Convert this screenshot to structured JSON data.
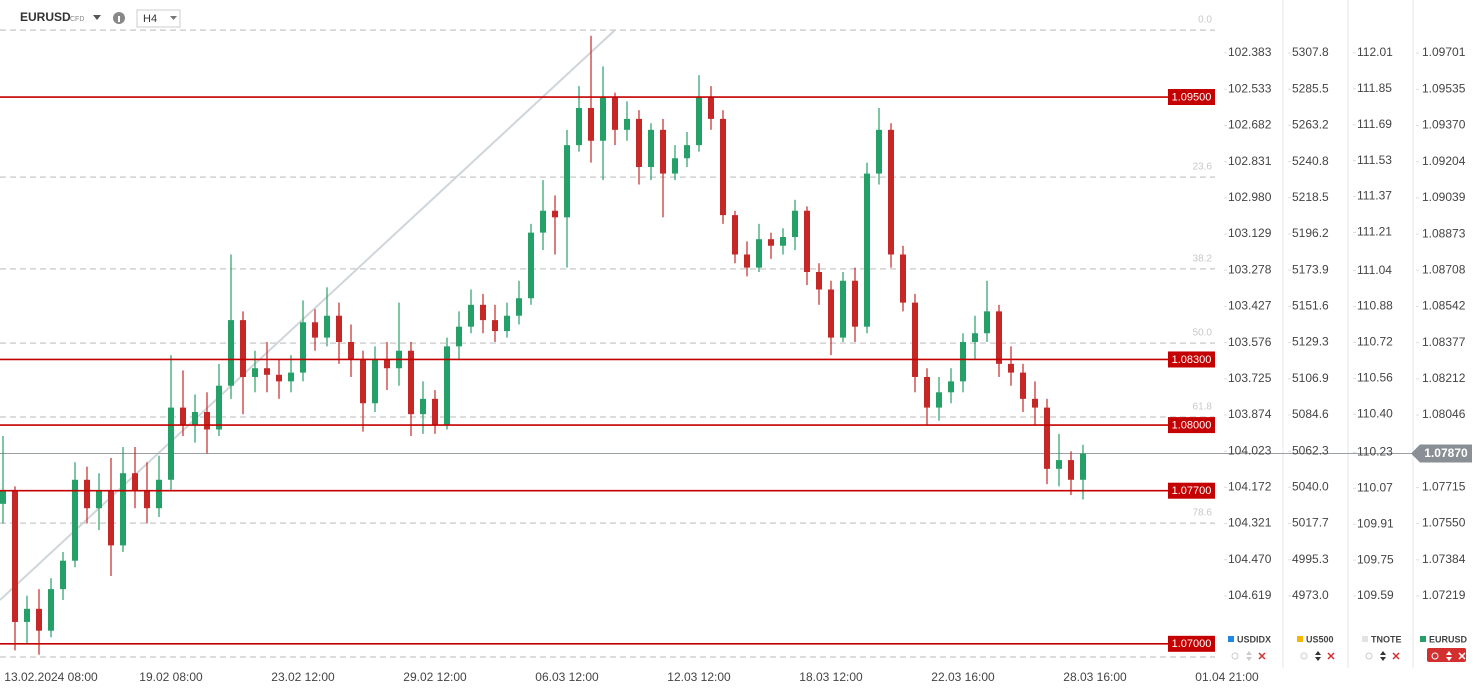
{
  "header": {
    "symbol": "EURUSD",
    "kind": "CFD",
    "interval": "H4"
  },
  "chart_data": {
    "type": "candlestick",
    "name": "EURUSD",
    "color": "#26a069",
    "up_color": "#26a069",
    "down_color": "#c62828",
    "categories": [
      null,
      null,
      null,
      null,
      "13.02.2024 08:00",
      null,
      null,
      null,
      null,
      null,
      null,
      null,
      null,
      null,
      "19.02 08:00",
      null,
      null,
      null,
      null,
      null,
      null,
      null,
      null,
      null,
      null,
      "23.02 12:00",
      null,
      null,
      null,
      null,
      null,
      null,
      null,
      null,
      null,
      null,
      "29.02 12:00",
      null,
      null,
      null,
      null,
      null,
      null,
      null,
      null,
      null,
      null,
      "06.03 12:00",
      null,
      null,
      null,
      null,
      null,
      null,
      null,
      null,
      null,
      null,
      "12.03 12:00",
      null,
      null,
      null,
      null,
      null,
      null,
      null,
      null,
      null,
      null,
      "18.03 12:00",
      null,
      null,
      null,
      null,
      null,
      null,
      null,
      null,
      null,
      null,
      "22.03 16:00",
      null,
      null,
      null,
      null,
      null,
      null,
      null,
      null,
      null,
      null,
      "28.03 16:00",
      null,
      null,
      null,
      null,
      null,
      null,
      null,
      null,
      null,
      null,
      "01.04 21:00"
    ],
    "open": [
      1.0764,
      1.077,
      1.071,
      1.0716,
      1.0706,
      1.0725,
      1.0738,
      1.0775,
      1.0762,
      1.077,
      1.0745,
      1.0778,
      1.077,
      1.0762,
      1.0775,
      1.0808,
      1.08,
      1.0806,
      1.0798,
      1.0818,
      1.0848,
      1.0822,
      1.0826,
      1.0823,
      1.082,
      1.0824,
      1.0847,
      1.084,
      1.085,
      1.0838,
      1.083,
      1.081,
      1.083,
      1.0826,
      1.0834,
      1.0805,
      1.0812,
      1.08,
      1.0836,
      1.0845,
      1.0855,
      1.0848,
      1.0843,
      1.085,
      1.0858,
      1.0888,
      1.0898,
      1.0895,
      1.0928,
      1.0945,
      1.093,
      1.095,
      1.0935,
      1.094,
      1.0918,
      1.0935,
      1.0915,
      1.0922,
      1.0928,
      1.095,
      1.094,
      1.0896,
      1.0878,
      1.0872,
      1.0885,
      1.0882,
      1.0886,
      1.0898,
      1.087,
      1.0862,
      1.084,
      1.0866,
      1.0845,
      1.0915,
      1.0935,
      1.0878,
      1.0856,
      1.0822,
      1.0808,
      1.0815,
      1.082,
      1.0838,
      1.0842,
      1.0852,
      1.0828,
      1.0824,
      1.0812,
      1.0808,
      1.078,
      1.0784,
      1.0775,
      null,
      null,
      null,
      null,
      null,
      null,
      null,
      null,
      null,
      null,
      null,
      null
    ],
    "close": [
      1.077,
      1.071,
      1.0716,
      1.0706,
      1.0725,
      1.0738,
      1.0775,
      1.0762,
      1.077,
      1.0745,
      1.0778,
      1.077,
      1.0762,
      1.0775,
      1.0808,
      1.08,
      1.0806,
      1.0798,
      1.0818,
      1.0848,
      1.0822,
      1.0826,
      1.0823,
      1.082,
      1.0824,
      1.0847,
      1.084,
      1.085,
      1.0838,
      1.083,
      1.081,
      1.083,
      1.0826,
      1.0834,
      1.0805,
      1.0812,
      1.08,
      1.0836,
      1.0845,
      1.0855,
      1.0848,
      1.0843,
      1.085,
      1.0858,
      1.0888,
      1.0898,
      1.0895,
      1.0928,
      1.0945,
      1.093,
      1.095,
      1.0935,
      1.094,
      1.0918,
      1.0935,
      1.0915,
      1.0922,
      1.0928,
      1.095,
      1.094,
      1.0896,
      1.0878,
      1.0872,
      1.0885,
      1.0882,
      1.0886,
      1.0898,
      1.087,
      1.0862,
      1.084,
      1.0866,
      1.0845,
      1.0915,
      1.0935,
      1.0878,
      1.0856,
      1.0822,
      1.0808,
      1.0815,
      1.082,
      1.0838,
      1.0842,
      1.0852,
      1.0828,
      1.0824,
      1.0812,
      1.0808,
      1.078,
      1.0784,
      1.0775,
      1.0787,
      null,
      null,
      null,
      null,
      null,
      null,
      null,
      null,
      null,
      null,
      null,
      null
    ],
    "high": [
      1.0795,
      1.0772,
      1.0722,
      1.0725,
      1.073,
      1.0742,
      1.0783,
      1.0781,
      1.0778,
      1.0785,
      1.079,
      1.079,
      1.0783,
      1.0786,
      1.0832,
      1.0825,
      1.0814,
      1.0815,
      1.0828,
      1.0878,
      1.0852,
      1.0834,
      1.0838,
      1.083,
      1.0832,
      1.0857,
      1.0853,
      1.0863,
      1.0856,
      1.0846,
      1.0834,
      1.0836,
      1.0838,
      1.0856,
      1.0838,
      1.082,
      1.0816,
      1.084,
      1.0852,
      1.0862,
      1.086,
      1.0855,
      1.0856,
      1.0866,
      1.0892,
      1.0912,
      1.0905,
      1.0935,
      1.0955,
      1.0978,
      1.0964,
      1.0952,
      1.0948,
      1.0944,
      1.0938,
      1.094,
      1.0928,
      1.0934,
      1.096,
      1.0955,
      1.0944,
      1.0898,
      1.0884,
      1.0892,
      1.0888,
      1.089,
      1.0903,
      1.09,
      1.0874,
      1.0866,
      1.087,
      1.0872,
      1.092,
      1.0945,
      1.0938,
      1.0882,
      1.086,
      1.0826,
      1.0822,
      1.0826,
      1.0842,
      1.085,
      1.0866,
      1.0855,
      1.0836,
      1.0828,
      1.082,
      1.0812,
      1.0796,
      1.0788,
      1.0791,
      null,
      null,
      null,
      null,
      null,
      null,
      null,
      null,
      null,
      null,
      null,
      null
    ],
    "low": [
      1.0755,
      1.0697,
      1.07,
      1.0695,
      1.0703,
      1.072,
      1.0735,
      1.0755,
      1.0752,
      1.0731,
      1.0742,
      1.0762,
      1.0755,
      1.0758,
      1.077,
      1.0795,
      1.0792,
      1.0787,
      1.0795,
      1.0812,
      1.0805,
      1.0815,
      1.0815,
      1.0812,
      1.0815,
      1.082,
      1.0834,
      1.0836,
      1.0828,
      1.0822,
      1.0797,
      1.0806,
      1.0816,
      1.0818,
      1.0795,
      1.0796,
      1.0796,
      1.0798,
      1.083,
      1.0842,
      1.0842,
      1.0838,
      1.084,
      1.0846,
      1.0855,
      1.088,
      1.0878,
      1.0872,
      1.0925,
      1.092,
      1.0912,
      1.0928,
      1.093,
      1.091,
      1.0912,
      1.0895,
      1.0912,
      1.0918,
      1.0925,
      1.0935,
      1.0892,
      1.0874,
      1.0868,
      1.087,
      1.0876,
      1.0878,
      1.088,
      1.0864,
      1.0855,
      1.0832,
      1.0838,
      1.0838,
      1.0842,
      1.091,
      1.0872,
      1.0852,
      1.0815,
      1.08,
      1.0802,
      1.081,
      1.0815,
      1.083,
      1.0838,
      1.0822,
      1.0818,
      1.0806,
      1.08,
      1.0773,
      1.0772,
      1.0768,
      1.0766,
      null,
      null,
      null,
      null,
      null,
      null,
      null,
      null,
      null,
      null,
      null,
      null
    ],
    "ylim": [
      1.06926,
      1.09907
    ],
    "yticks": [
      {
        "value": 1.09701,
        "label": "1.09701"
      },
      {
        "value": 1.09535,
        "label": "1.09535"
      },
      {
        "value": 1.0937,
        "label": "1.09370"
      },
      {
        "value": 1.09204,
        "label": "1.09204"
      },
      {
        "value": 1.09039,
        "label": "1.09039"
      },
      {
        "value": 1.08873,
        "label": "1.08873"
      },
      {
        "value": 1.08708,
        "label": "1.08708"
      },
      {
        "value": 1.08542,
        "label": "1.08542"
      },
      {
        "value": 1.08377,
        "label": "1.08377"
      },
      {
        "value": 1.08212,
        "label": "1.08212"
      },
      {
        "value": 1.08046,
        "label": "1.08046"
      },
      {
        "value": 1.07715,
        "label": "1.07715"
      },
      {
        "value": 1.0755,
        "label": "1.07550"
      },
      {
        "value": 1.07384,
        "label": "1.07384"
      },
      {
        "value": 1.07219,
        "label": "1.07219"
      }
    ],
    "last": {
      "value": 1.0787,
      "label": "1.07870"
    },
    "levels": [
      {
        "value": 1.095,
        "label": "1.09500"
      },
      {
        "value": 1.083,
        "label": "1.08300"
      },
      {
        "value": 1.08,
        "label": "1.08000"
      },
      {
        "value": 1.077,
        "label": "1.07700"
      },
      {
        "value": 1.07,
        "label": "1.07000"
      }
    ],
    "fib": [
      {
        "price": 1.09806,
        "label": "0.0"
      },
      {
        "price": 1.09134,
        "label": "23.6"
      },
      {
        "price": 1.08714,
        "label": "38.2"
      },
      {
        "price": 1.08375,
        "label": "50.0"
      },
      {
        "price": 1.08037,
        "label": "61.8"
      },
      {
        "price": 1.07552,
        "label": "78.6"
      },
      {
        "price": 1.0694
      }
    ],
    "other_axes": [
      {
        "name": "USDIDX",
        "color": "#1e88e5",
        "ylim": [
          104.883,
          102.198
        ],
        "yticks": [
          102.383,
          102.533,
          102.682,
          102.831,
          {
            "value": 102.98,
            "label": "102.980"
          },
          103.129,
          103.278,
          103.427,
          103.576,
          103.725,
          103.874,
          104.023,
          104.172,
          104.321,
          {
            "value": 104.47,
            "label": "104.470"
          },
          104.619
        ]
      },
      {
        "name": "US500",
        "color": "#f5b700",
        "ylim": [
          4933.5,
          5335.5
        ],
        "yticks": [
          5307.8,
          5285.5,
          5263.2,
          5240.8,
          5218.5,
          5196.2,
          5173.9,
          5151.6,
          5129.3,
          5106.9,
          5084.6,
          5062.3,
          {
            "value": 5040,
            "label": "5040.0"
          },
          5017.7,
          4995.3,
          {
            "value": 4973,
            "label": "4973.0"
          }
        ]
      },
      {
        "name": "TNOTE",
        "color": "#e3e3e3",
        "ylim": [
          109.305,
          112.21
        ],
        "yticks": [
          112.01,
          111.85,
          111.69,
          111.53,
          111.37,
          111.21,
          111.04,
          110.88,
          110.72,
          110.56,
          {
            "value": 110.4,
            "label": "110.40"
          },
          110.23,
          110.07,
          109.91,
          109.75,
          109.59
        ]
      }
    ]
  }
}
